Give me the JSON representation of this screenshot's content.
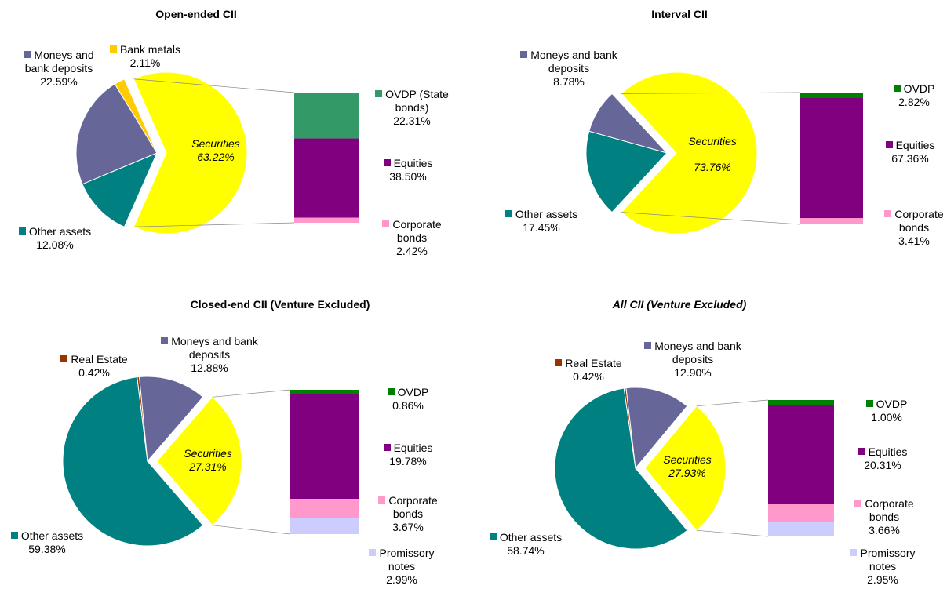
{
  "chart_data": [
    {
      "type": "pie-of-bar",
      "title": "Open-ended CII",
      "categories": [
        "Securities",
        "Other assets",
        "Moneys and bank deposits",
        "Bank metals"
      ],
      "values": [
        63.22,
        12.08,
        22.59,
        2.11
      ],
      "value_labels": [
        "63.22%",
        "12.08%",
        "22.59%",
        "2.11%"
      ],
      "colors": [
        "#ffff00",
        "#008080",
        "#666699",
        "#ffcc00"
      ],
      "breakdown": {
        "categories": [
          "OVDP (State bonds)",
          "Equities",
          "Corporate bonds"
        ],
        "values": [
          22.31,
          38.5,
          2.42
        ],
        "value_labels": [
          "22.31%",
          "38.50%",
          "2.42%"
        ],
        "colors": [
          "#339966",
          "#800080",
          "#ff99cc"
        ]
      }
    },
    {
      "type": "pie-of-bar",
      "title": "Interval CII",
      "categories": [
        "Securities",
        "Other assets",
        "Moneys and bank deposits"
      ],
      "values": [
        73.76,
        17.45,
        8.78
      ],
      "value_labels": [
        "73.76%",
        "17.45%",
        "8.78%"
      ],
      "colors": [
        "#ffff00",
        "#008080",
        "#666699"
      ],
      "breakdown": {
        "categories": [
          "OVDP",
          "Equities",
          "Corporate bonds"
        ],
        "values": [
          2.82,
          67.36,
          3.41
        ],
        "value_labels": [
          "2.82%",
          "67.36%",
          "3.41%"
        ],
        "colors": [
          "#008000",
          "#800080",
          "#ff99cc"
        ]
      }
    },
    {
      "type": "pie-of-bar",
      "title": "Closed-end CII  (Venture Excluded)",
      "categories": [
        "Securities",
        "Other assets",
        "Real Estate",
        "Moneys and bank deposits"
      ],
      "values": [
        27.31,
        59.38,
        0.42,
        12.88
      ],
      "value_labels": [
        "27.31%",
        "59.38%",
        "0.42%",
        "12.88%"
      ],
      "colors": [
        "#ffff00",
        "#008080",
        "#993300",
        "#666699"
      ],
      "breakdown": {
        "categories": [
          "OVDP",
          "Equities",
          "Corporate bonds",
          "Promissory notes"
        ],
        "values": [
          0.86,
          19.78,
          3.67,
          2.99
        ],
        "value_labels": [
          "0.86%",
          "19.78%",
          "3.67%",
          "2.99%"
        ],
        "colors": [
          "#008000",
          "#800080",
          "#ff99cc",
          "#ccccff"
        ]
      }
    },
    {
      "type": "pie-of-bar",
      "title": "All CII (Venture Excluded)",
      "title_italic": true,
      "categories": [
        "Securities",
        "Other assets",
        "Real Estate",
        "Moneys and bank deposits"
      ],
      "values": [
        27.93,
        58.74,
        0.42,
        12.9
      ],
      "value_labels": [
        "27.93%",
        "58.74%",
        "0.42%",
        "12.90%"
      ],
      "colors": [
        "#ffff00",
        "#008080",
        "#993300",
        "#666699"
      ],
      "breakdown": {
        "categories": [
          "OVDP",
          "Equities",
          "Corporate bonds",
          "Promissory notes"
        ],
        "values": [
          1.0,
          20.31,
          3.66,
          2.95
        ],
        "value_labels": [
          "1.00%",
          "20.31%",
          "3.66%",
          "2.95%"
        ],
        "colors": [
          "#008000",
          "#800080",
          "#ff99cc",
          "#ccccff"
        ]
      }
    }
  ]
}
